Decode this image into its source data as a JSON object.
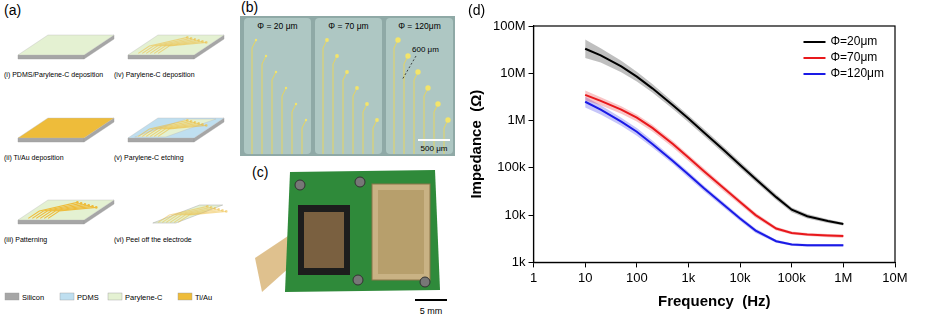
{
  "panels": {
    "a": {
      "label": "(a)",
      "steps": [
        "(i) PDMS/Parylene-C deposition",
        "(ii) Ti/Au deposition",
        "(iii) Patterning",
        "(iv) Parylene-C deposition",
        "(v) Parylene-C etching",
        "(vi) Peel off the electrode"
      ],
      "legend": [
        {
          "name": "Silicon",
          "color": "#a6a6a6"
        },
        {
          "name": "PDMS",
          "color": "#bfdff0"
        },
        {
          "name": "Parylene-C",
          "color": "#e4f1d2"
        },
        {
          "name": "Ti/Au",
          "color": "#eebc3a"
        }
      ]
    },
    "b": {
      "label": "(b)",
      "columns": [
        "Φ = 20 μm",
        "Φ = 70 μm",
        "Φ = 120μm"
      ],
      "pitch_label": "600 μm",
      "scale_bar": "500 μm"
    },
    "c": {
      "label": "(c)",
      "scale_bar": "5 mm"
    },
    "d": {
      "label": "(d)"
    }
  },
  "chart_data": {
    "type": "line",
    "log": true,
    "grid": false,
    "legend": "upper right",
    "x_label": "Frequency  (Hz)",
    "y_label": "Impedance  (Ω)",
    "x": [
      10,
      20,
      50,
      100,
      200,
      500,
      1000,
      2000,
      5000,
      10000,
      20000,
      50000,
      100000,
      200000,
      500000,
      1000000
    ],
    "series": [
      {
        "name": "Φ=20μm",
        "color": "#000000",
        "values": [
          33000000,
          24000000,
          14000000,
          8500000,
          4800000,
          2100000,
          1100000,
          560000,
          230000,
          115000,
          58000,
          24000,
          13000,
          9500,
          7500,
          6500
        ],
        "lower": [
          21000000,
          17000000,
          10500000,
          6700000,
          3900000,
          1750000,
          920000,
          470000,
          195000,
          98000,
          50000,
          21000,
          11500,
          8500,
          6800,
          6000
        ],
        "upper": [
          52000000,
          34000000,
          18500000,
          10800000,
          5900000,
          2500000,
          1300000,
          660000,
          270000,
          135000,
          67000,
          27500,
          14500,
          10500,
          8200,
          7000
        ]
      },
      {
        "name": "Φ=70μm",
        "color": "#e8191c",
        "values": [
          3500000,
          2600000,
          1700000,
          1150000,
          700000,
          320000,
          165000,
          85000,
          36000,
          19000,
          10000,
          5200,
          4200,
          3900,
          3700,
          3600
        ],
        "lower": [
          2700000,
          2100000,
          1400000,
          960000,
          590000,
          270000,
          140000,
          72000,
          31000,
          16500,
          8800,
          4700,
          3900,
          3600,
          3400,
          3300
        ],
        "upper": [
          4300000,
          3100000,
          2000000,
          1350000,
          820000,
          370000,
          190000,
          98000,
          41000,
          21500,
          11200,
          5700,
          4500,
          4200,
          4000,
          3900
        ]
      },
      {
        "name": "Φ=120μm",
        "color": "#1a1ae6",
        "values": [
          2500000,
          1700000,
          950000,
          580000,
          320000,
          140000,
          72000,
          37000,
          16000,
          8500,
          4700,
          2800,
          2400,
          2300,
          2300,
          2300
        ],
        "lower": [
          1900000,
          1350000,
          780000,
          480000,
          270000,
          120000,
          62000,
          32000,
          14000,
          7500,
          4200,
          2600,
          2250,
          2150,
          2150,
          2150
        ],
        "upper": [
          3200000,
          2100000,
          1150000,
          700000,
          380000,
          160000,
          83000,
          42000,
          18000,
          9500,
          5200,
          3000,
          2550,
          2450,
          2450,
          2450
        ]
      }
    ],
    "xlim": [
      1,
      10000000
    ],
    "xticks": [
      1,
      10,
      100,
      {
        "value": 1000,
        "label": "1k"
      },
      {
        "value": 10000,
        "label": "10k"
      },
      {
        "value": 100000,
        "label": "100k"
      },
      {
        "value": 1000000,
        "label": "1M"
      },
      {
        "value": 10000000,
        "label": "10M"
      }
    ],
    "ylim": [
      1000,
      100000000
    ],
    "yticks": [
      {
        "value": 1000,
        "label": "1k"
      },
      {
        "value": 10000,
        "label": "10k"
      },
      {
        "value": 100000,
        "label": "100k"
      },
      {
        "value": 1000000,
        "label": "1M"
      },
      {
        "value": 10000000,
        "label": "10M"
      },
      {
        "value": 100000000,
        "label": "100M"
      }
    ]
  }
}
